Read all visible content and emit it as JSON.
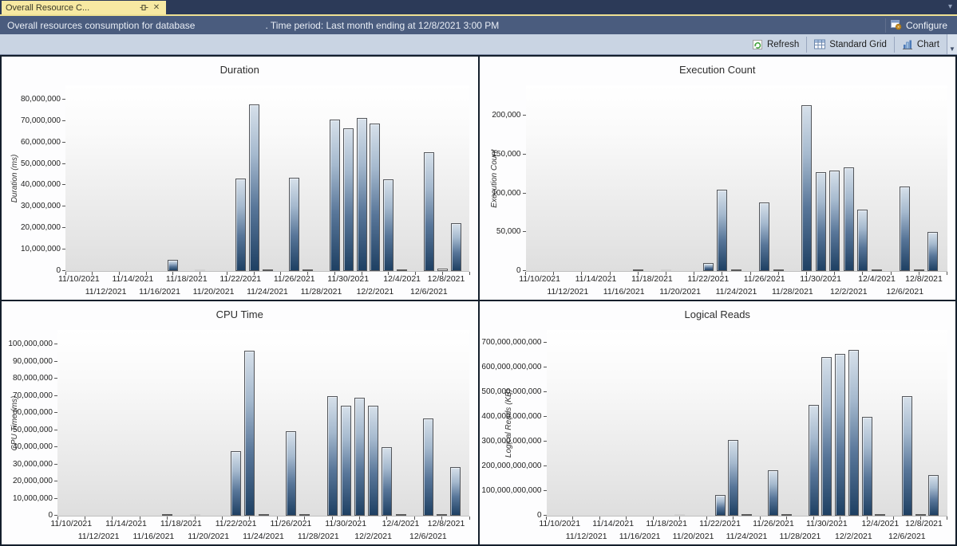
{
  "window": {
    "tab_title": "Overall Resource C...",
    "caret_glyph": "▾",
    "close_glyph": "✕"
  },
  "header": {
    "title_prefix": "Overall resources consumption for database",
    "title_suffix": ". Time period: Last month ending at 12/8/2021 3:00 PM",
    "configure_label": "Configure"
  },
  "toolbar": {
    "refresh_label": "Refresh",
    "grid_label": "Standard Grid",
    "chart_label": "Chart",
    "overflow_glyph": "▼"
  },
  "icons": [
    "pin-icon",
    "close-icon",
    "caret-down-icon",
    "configure-gear-icon",
    "refresh-icon",
    "grid-icon",
    "bar-chart-icon",
    "toolbar-overflow-icon"
  ],
  "colors": {
    "titlebar_bg": "#2C3A58",
    "tab_bg": "#F7E9A2",
    "header_bg": "#4A5C7E",
    "toolbar_bg": "#C9D4E3",
    "bar_gradient_top": "#D6E0EA",
    "bar_gradient_bottom": "#1E4063",
    "plot_bg_bottom": "#DEDEDE"
  },
  "chart_data": {
    "x_axis": {
      "start": "11/9/2021",
      "end": "12/9/2021",
      "tick_interval_days": 2,
      "labels": [
        "11/10/2021",
        "11/12/2021",
        "11/14/2021",
        "11/16/2021",
        "11/18/2021",
        "11/20/2021",
        "11/22/2021",
        "11/24/2021",
        "11/26/2021",
        "11/28/2021",
        "11/30/2021",
        "12/2/2021",
        "12/4/2021",
        "12/6/2021",
        "12/8/2021"
      ],
      "label_rows": "alternating",
      "grid": false
    },
    "charts": [
      {
        "type": "bar",
        "title": "Duration",
        "ylabel": "Duration (ms)",
        "ylim": [
          0,
          87000000
        ],
        "y_ticks": [
          0,
          10000000,
          20000000,
          30000000,
          40000000,
          50000000,
          60000000,
          70000000,
          80000000
        ],
        "bars": [
          {
            "date": "11/17/2021",
            "v": 5200000
          },
          {
            "date": "11/19/2021",
            "v": 800000,
            "style": "ghost"
          },
          {
            "date": "11/22/2021",
            "v": 43000000
          },
          {
            "date": "11/23/2021",
            "v": 77600000
          },
          {
            "date": "11/24/2021",
            "v": 900000,
            "style": "outline"
          },
          {
            "date": "11/26/2021",
            "v": 43400000
          },
          {
            "date": "11/27/2021",
            "v": 900000,
            "style": "outline"
          },
          {
            "date": "11/29/2021",
            "v": 70600000
          },
          {
            "date": "11/30/2021",
            "v": 66400000
          },
          {
            "date": "12/1/2021",
            "v": 71300000
          },
          {
            "date": "12/2/2021",
            "v": 68600000
          },
          {
            "date": "12/3/2021",
            "v": 42800000
          },
          {
            "date": "12/4/2021",
            "v": 600000,
            "style": "outline"
          },
          {
            "date": "12/6/2021",
            "v": 55300000
          },
          {
            "date": "12/7/2021",
            "v": 1000000,
            "style": "outline"
          },
          {
            "date": "12/8/2021",
            "v": 22300000
          }
        ]
      },
      {
        "type": "bar",
        "title": "Execution Count",
        "ylabel": "Execution Count",
        "ylim": [
          0,
          240000
        ],
        "y_ticks": [
          0,
          50000,
          100000,
          150000,
          200000
        ],
        "bars": [
          {
            "date": "11/17/2021",
            "v": 2500,
            "style": "outline"
          },
          {
            "date": "11/19/2021",
            "v": 2000,
            "style": "ghost"
          },
          {
            "date": "11/22/2021",
            "v": 10500
          },
          {
            "date": "11/23/2021",
            "v": 105000
          },
          {
            "date": "11/24/2021",
            "v": 1500,
            "style": "outline"
          },
          {
            "date": "11/26/2021",
            "v": 88500
          },
          {
            "date": "11/27/2021",
            "v": 2500,
            "style": "outline"
          },
          {
            "date": "11/29/2021",
            "v": 213000
          },
          {
            "date": "11/30/2021",
            "v": 127000
          },
          {
            "date": "12/1/2021",
            "v": 129000
          },
          {
            "date": "12/2/2021",
            "v": 133000
          },
          {
            "date": "12/3/2021",
            "v": 79000
          },
          {
            "date": "12/4/2021",
            "v": 1200,
            "style": "outline"
          },
          {
            "date": "12/6/2021",
            "v": 108500
          },
          {
            "date": "12/7/2021",
            "v": 2500,
            "style": "outline"
          },
          {
            "date": "12/8/2021",
            "v": 50500
          }
        ]
      },
      {
        "type": "bar",
        "title": "CPU Time",
        "ylabel": "CPU Time (ms)",
        "ylim": [
          0,
          109000000
        ],
        "y_ticks": [
          0,
          10000000,
          20000000,
          30000000,
          40000000,
          50000000,
          60000000,
          70000000,
          80000000,
          90000000,
          100000000
        ],
        "bars": [
          {
            "date": "11/17/2021",
            "v": 500000,
            "style": "outline"
          },
          {
            "date": "11/19/2021",
            "v": 400000,
            "style": "ghost"
          },
          {
            "date": "11/22/2021",
            "v": 37800000
          },
          {
            "date": "11/23/2021",
            "v": 96400000
          },
          {
            "date": "11/24/2021",
            "v": 900000,
            "style": "outline"
          },
          {
            "date": "11/26/2021",
            "v": 49300000
          },
          {
            "date": "11/27/2021",
            "v": 700000,
            "style": "outline"
          },
          {
            "date": "11/29/2021",
            "v": 69900000
          },
          {
            "date": "11/30/2021",
            "v": 64300000
          },
          {
            "date": "12/1/2021",
            "v": 68900000
          },
          {
            "date": "12/2/2021",
            "v": 64400000
          },
          {
            "date": "12/3/2021",
            "v": 40000000
          },
          {
            "date": "12/4/2021",
            "v": 600000,
            "style": "outline"
          },
          {
            "date": "12/6/2021",
            "v": 56800000
          },
          {
            "date": "12/7/2021",
            "v": 1100000,
            "style": "outline"
          },
          {
            "date": "12/8/2021",
            "v": 28400000
          }
        ]
      },
      {
        "type": "bar",
        "title": "Logical Reads",
        "ylabel": "Logical Reads (KB)",
        "ylim": [
          0,
          755000000000
        ],
        "y_ticks": [
          0,
          100000000000,
          200000000000,
          300000000000,
          400000000000,
          500000000000,
          600000000000,
          700000000000
        ],
        "bars": [
          {
            "date": "11/19/2021",
            "v": 1500000000,
            "style": "ghost"
          },
          {
            "date": "11/22/2021",
            "v": 84000000000
          },
          {
            "date": "11/23/2021",
            "v": 306000000000
          },
          {
            "date": "11/24/2021",
            "v": 3000000000,
            "style": "outline"
          },
          {
            "date": "11/26/2021",
            "v": 184000000000
          },
          {
            "date": "11/27/2021",
            "v": 4000000000,
            "style": "outline"
          },
          {
            "date": "11/29/2021",
            "v": 450000000000
          },
          {
            "date": "11/30/2021",
            "v": 642000000000
          },
          {
            "date": "12/1/2021",
            "v": 655000000000
          },
          {
            "date": "12/2/2021",
            "v": 671000000000
          },
          {
            "date": "12/3/2021",
            "v": 401000000000
          },
          {
            "date": "12/4/2021",
            "v": 4000000000,
            "style": "outline"
          },
          {
            "date": "12/6/2021",
            "v": 483000000000
          },
          {
            "date": "12/7/2021",
            "v": 5000000000,
            "style": "outline"
          },
          {
            "date": "12/8/2021",
            "v": 164000000000
          }
        ]
      }
    ]
  }
}
